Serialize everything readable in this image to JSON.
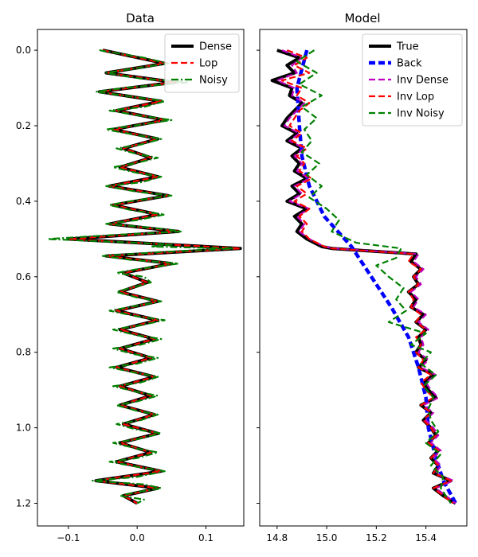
{
  "chart_data": [
    {
      "type": "line",
      "title": "Data",
      "xlabel": "",
      "ylabel": "",
      "xlim": [
        -0.145,
        0.155
      ],
      "ylim": [
        1.26,
        -0.055
      ],
      "y_inverted": true,
      "grid": false,
      "xticks": [
        -0.1,
        0.0,
        0.1
      ],
      "xtick_labels": [
        "−0.1",
        "0.0",
        "0.1"
      ],
      "yticks": [
        0.0,
        0.2,
        0.4,
        0.6,
        0.8,
        1.0,
        1.2
      ],
      "ytick_labels": [
        "0.0",
        "0.2",
        "0.4",
        "0.6",
        "0.8",
        "1.0",
        "1.2"
      ],
      "legend_position": "top-right",
      "series": [
        {
          "name": "Dense",
          "color": "#000000",
          "style": "solid",
          "width": 4,
          "depth": [
            0.0,
            0.035,
            0.06,
            0.085,
            0.11,
            0.135,
            0.16,
            0.185,
            0.21,
            0.235,
            0.26,
            0.285,
            0.31,
            0.335,
            0.36,
            0.385,
            0.41,
            0.435,
            0.46,
            0.48,
            0.5,
            0.515,
            0.525,
            0.545,
            0.565,
            0.59,
            0.615,
            0.64,
            0.665,
            0.69,
            0.715,
            0.74,
            0.765,
            0.79,
            0.815,
            0.84,
            0.865,
            0.89,
            0.915,
            0.94,
            0.965,
            0.99,
            1.015,
            1.04,
            1.065,
            1.09,
            1.115,
            1.14,
            1.16,
            1.18,
            1.2
          ],
          "value": [
            -0.05,
            0.04,
            -0.045,
            0.055,
            -0.055,
            0.035,
            -0.03,
            0.04,
            -0.035,
            0.03,
            -0.02,
            0.02,
            -0.025,
            0.03,
            -0.04,
            0.045,
            -0.035,
            0.03,
            -0.04,
            0.06,
            -0.1,
            0.05,
            0.15,
            -0.045,
            0.05,
            -0.02,
            0.015,
            -0.025,
            0.03,
            -0.03,
            0.03,
            -0.025,
            0.025,
            -0.025,
            0.02,
            -0.03,
            0.025,
            -0.025,
            0.02,
            -0.025,
            0.025,
            -0.02,
            0.03,
            -0.025,
            0.02,
            -0.03,
            0.035,
            -0.06,
            0.03,
            -0.02,
            0.0
          ]
        },
        {
          "name": "Lop",
          "color": "#ff0000",
          "style": "dashed",
          "width": 2.2,
          "depth": [
            0.0,
            0.035,
            0.06,
            0.085,
            0.11,
            0.135,
            0.16,
            0.185,
            0.21,
            0.235,
            0.26,
            0.285,
            0.31,
            0.335,
            0.36,
            0.385,
            0.41,
            0.435,
            0.46,
            0.48,
            0.5,
            0.515,
            0.525,
            0.545,
            0.565,
            0.59,
            0.615,
            0.64,
            0.665,
            0.69,
            0.715,
            0.74,
            0.765,
            0.79,
            0.815,
            0.84,
            0.865,
            0.89,
            0.915,
            0.94,
            0.965,
            0.99,
            1.015,
            1.04,
            1.065,
            1.09,
            1.115,
            1.14,
            1.16,
            1.18,
            1.2
          ],
          "value": [
            -0.05,
            0.04,
            -0.045,
            0.055,
            -0.055,
            0.035,
            -0.03,
            0.04,
            -0.035,
            0.03,
            -0.02,
            0.02,
            -0.025,
            0.03,
            -0.04,
            0.045,
            -0.035,
            0.03,
            -0.04,
            0.06,
            -0.1,
            0.05,
            0.15,
            -0.045,
            0.05,
            -0.02,
            0.015,
            -0.025,
            0.03,
            -0.03,
            0.03,
            -0.025,
            0.025,
            -0.025,
            0.02,
            -0.03,
            0.025,
            -0.025,
            0.02,
            -0.025,
            0.025,
            -0.02,
            0.03,
            -0.025,
            0.02,
            -0.03,
            0.035,
            -0.06,
            0.03,
            -0.02,
            0.0
          ]
        },
        {
          "name": "Noisy",
          "color": "#008000",
          "style": "dashdot",
          "width": 2.2,
          "depth": [
            0.0,
            0.02,
            0.035,
            0.05,
            0.06,
            0.075,
            0.085,
            0.1,
            0.11,
            0.125,
            0.135,
            0.15,
            0.16,
            0.175,
            0.185,
            0.2,
            0.21,
            0.225,
            0.235,
            0.25,
            0.26,
            0.275,
            0.285,
            0.3,
            0.31,
            0.325,
            0.335,
            0.35,
            0.36,
            0.375,
            0.385,
            0.4,
            0.41,
            0.425,
            0.435,
            0.45,
            0.46,
            0.47,
            0.48,
            0.49,
            0.5,
            0.51,
            0.515,
            0.52,
            0.525,
            0.535,
            0.545,
            0.555,
            0.565,
            0.58,
            0.59,
            0.6,
            0.615,
            0.63,
            0.64,
            0.655,
            0.665,
            0.68,
            0.69,
            0.705,
            0.715,
            0.73,
            0.74,
            0.755,
            0.765,
            0.78,
            0.79,
            0.805,
            0.815,
            0.83,
            0.84,
            0.855,
            0.865,
            0.88,
            0.89,
            0.905,
            0.915,
            0.93,
            0.94,
            0.955,
            0.965,
            0.98,
            0.99,
            1.005,
            1.015,
            1.03,
            1.04,
            1.055,
            1.065,
            1.08,
            1.09,
            1.105,
            1.115,
            1.13,
            1.14,
            1.15,
            1.16,
            1.17,
            1.18,
            1.19,
            1.2
          ],
          "value": [
            -0.055,
            0.01,
            0.045,
            -0.01,
            -0.045,
            0.005,
            0.075,
            -0.02,
            -0.06,
            0.0,
            0.04,
            0.01,
            -0.04,
            0.01,
            0.05,
            -0.005,
            -0.045,
            0.0,
            0.035,
            0.005,
            -0.03,
            0.0,
            0.03,
            -0.005,
            -0.035,
            0.0,
            0.035,
            0.005,
            -0.045,
            0.0,
            0.05,
            -0.01,
            -0.04,
            -0.005,
            0.04,
            0.0,
            -0.045,
            0.02,
            0.065,
            -0.04,
            -0.13,
            0.0,
            0.05,
            0.02,
            0.14,
            0.03,
            -0.05,
            -0.01,
            0.06,
            0.0,
            -0.03,
            0.01,
            0.02,
            -0.01,
            -0.03,
            0.0,
            0.035,
            -0.01,
            -0.04,
            0.0,
            0.04,
            0.0,
            -0.035,
            0.0,
            0.035,
            0.005,
            -0.035,
            -0.005,
            0.03,
            0.0,
            -0.04,
            0.0,
            0.03,
            0.005,
            -0.035,
            0.0,
            0.03,
            0.0,
            -0.03,
            0.0,
            0.03,
            0.005,
            -0.03,
            0.0,
            0.035,
            0.0,
            -0.035,
            0.0,
            0.03,
            0.0,
            -0.04,
            0.005,
            0.04,
            0.0,
            -0.065,
            0.01,
            0.035,
            0.0,
            -0.025,
            0.01,
            0.0
          ]
        }
      ]
    },
    {
      "type": "line",
      "title": "Model",
      "xlabel": "",
      "ylabel": "",
      "xlim": [
        14.73,
        15.565
      ],
      "ylim": [
        1.26,
        -0.055
      ],
      "y_inverted": true,
      "shared_y": true,
      "grid": false,
      "xticks": [
        14.8,
        15.0,
        15.2,
        15.4
      ],
      "xtick_labels": [
        "14.8",
        "15.0",
        "15.2",
        "15.4"
      ],
      "legend_position": "top-right",
      "series": [
        {
          "name": "True",
          "color": "#000000",
          "style": "solid",
          "width": 4,
          "depth": [
            0.0,
            0.02,
            0.04,
            0.06,
            0.08,
            0.1,
            0.12,
            0.14,
            0.16,
            0.18,
            0.2,
            0.22,
            0.24,
            0.26,
            0.28,
            0.3,
            0.32,
            0.34,
            0.36,
            0.38,
            0.4,
            0.42,
            0.44,
            0.46,
            0.48,
            0.5,
            0.52,
            0.525,
            0.54,
            0.56,
            0.58,
            0.6,
            0.62,
            0.64,
            0.66,
            0.68,
            0.7,
            0.72,
            0.74,
            0.76,
            0.78,
            0.8,
            0.82,
            0.84,
            0.86,
            0.88,
            0.9,
            0.92,
            0.94,
            0.96,
            0.98,
            1.0,
            1.02,
            1.04,
            1.06,
            1.08,
            1.1,
            1.12,
            1.14,
            1.16,
            1.18,
            1.2
          ],
          "value": [
            14.8,
            14.89,
            14.84,
            14.87,
            14.78,
            14.86,
            14.85,
            14.9,
            14.87,
            14.84,
            14.82,
            14.88,
            14.84,
            14.9,
            14.86,
            14.89,
            14.87,
            14.92,
            14.86,
            14.89,
            14.84,
            14.92,
            14.87,
            14.9,
            14.88,
            14.92,
            14.98,
            15.02,
            15.36,
            15.34,
            15.38,
            15.35,
            15.37,
            15.33,
            15.36,
            15.34,
            15.39,
            15.36,
            15.4,
            15.37,
            15.38,
            15.36,
            15.4,
            15.37,
            15.43,
            15.39,
            15.41,
            15.44,
            15.38,
            15.42,
            15.39,
            15.42,
            15.44,
            15.41,
            15.45,
            15.42,
            15.45,
            15.43,
            15.5,
            15.43,
            15.47,
            15.52
          ]
        },
        {
          "name": "Back",
          "color": "#0000ff",
          "style": "dashed",
          "width": 4.5,
          "depth": [
            0.0,
            0.1,
            0.2,
            0.28,
            0.36,
            0.44,
            0.52,
            0.6,
            0.68,
            0.76,
            0.84,
            0.92,
            1.0,
            1.08,
            1.14,
            1.2
          ],
          "value": [
            14.92,
            14.88,
            14.89,
            14.9,
            14.93,
            14.99,
            15.1,
            15.18,
            15.26,
            15.33,
            15.37,
            15.4,
            15.41,
            15.44,
            15.47,
            15.52
          ]
        },
        {
          "name": "Inv Dense",
          "color": "#bf00bf",
          "style": "dashed",
          "width": 2.2,
          "depth": [
            0.0,
            0.02,
            0.04,
            0.06,
            0.08,
            0.1,
            0.12,
            0.14,
            0.16,
            0.18,
            0.2,
            0.22,
            0.24,
            0.26,
            0.28,
            0.3,
            0.32,
            0.34,
            0.36,
            0.38,
            0.4,
            0.42,
            0.44,
            0.46,
            0.48,
            0.5,
            0.52,
            0.525,
            0.54,
            0.56,
            0.58,
            0.6,
            0.62,
            0.64,
            0.66,
            0.68,
            0.7,
            0.72,
            0.74,
            0.76,
            0.78,
            0.8,
            0.82,
            0.84,
            0.86,
            0.88,
            0.9,
            0.92,
            0.94,
            0.96,
            0.98,
            1.0,
            1.02,
            1.04,
            1.06,
            1.08,
            1.1,
            1.12,
            1.14,
            1.16,
            1.18,
            1.2
          ],
          "value": [
            14.82,
            14.9,
            14.86,
            14.88,
            14.8,
            14.87,
            14.86,
            14.91,
            14.88,
            14.85,
            14.83,
            14.89,
            14.85,
            14.91,
            14.87,
            14.9,
            14.88,
            14.93,
            14.87,
            14.9,
            14.85,
            14.93,
            14.88,
            14.91,
            14.89,
            14.93,
            14.99,
            15.03,
            15.37,
            15.35,
            15.39,
            15.36,
            15.38,
            15.34,
            15.37,
            15.35,
            15.4,
            15.37,
            15.41,
            15.38,
            15.39,
            15.37,
            15.41,
            15.38,
            15.44,
            15.4,
            15.42,
            15.45,
            15.39,
            15.43,
            15.4,
            15.43,
            15.45,
            15.42,
            15.46,
            15.43,
            15.46,
            15.44,
            15.51,
            15.44,
            15.48,
            15.52
          ]
        },
        {
          "name": "Inv Lop",
          "color": "#ff0000",
          "style": "dashed",
          "width": 2.2,
          "depth": [
            0.0,
            0.02,
            0.04,
            0.06,
            0.08,
            0.1,
            0.12,
            0.14,
            0.16,
            0.18,
            0.2,
            0.22,
            0.24,
            0.26,
            0.28,
            0.3,
            0.32,
            0.34,
            0.36,
            0.38,
            0.4,
            0.42,
            0.44,
            0.46,
            0.48,
            0.5,
            0.52,
            0.525,
            0.54,
            0.56,
            0.58,
            0.6,
            0.62,
            0.64,
            0.66,
            0.68,
            0.7,
            0.72,
            0.74,
            0.76,
            0.78,
            0.8,
            0.82,
            0.84,
            0.86,
            0.88,
            0.9,
            0.92,
            0.94,
            0.96,
            0.98,
            1.0,
            1.02,
            1.04,
            1.06,
            1.08,
            1.1,
            1.12,
            1.14,
            1.16,
            1.18,
            1.2
          ],
          "value": [
            14.84,
            14.92,
            14.87,
            14.93,
            14.82,
            14.9,
            14.88,
            14.93,
            14.89,
            14.87,
            14.85,
            14.9,
            14.86,
            14.92,
            14.88,
            14.91,
            14.89,
            14.94,
            14.88,
            14.92,
            14.87,
            14.93,
            14.89,
            14.92,
            14.9,
            14.93,
            14.99,
            15.02,
            15.35,
            15.33,
            15.38,
            15.35,
            15.37,
            15.33,
            15.35,
            15.34,
            15.38,
            15.36,
            15.4,
            15.36,
            15.38,
            15.36,
            15.39,
            15.37,
            15.42,
            15.38,
            15.4,
            15.43,
            15.38,
            15.42,
            15.39,
            15.42,
            15.44,
            15.41,
            15.45,
            15.42,
            15.45,
            15.43,
            15.5,
            15.43,
            15.47,
            15.51
          ]
        },
        {
          "name": "Inv Noisy",
          "color": "#008000",
          "style": "dashed",
          "width": 2.2,
          "depth": [
            0.0,
            0.03,
            0.06,
            0.09,
            0.12,
            0.15,
            0.18,
            0.21,
            0.24,
            0.27,
            0.3,
            0.33,
            0.36,
            0.39,
            0.42,
            0.45,
            0.48,
            0.51,
            0.525,
            0.55,
            0.57,
            0.6,
            0.63,
            0.66,
            0.69,
            0.72,
            0.75,
            0.78,
            0.8,
            0.83,
            0.86,
            0.89,
            0.92,
            0.95,
            0.98,
            1.01,
            1.04,
            1.07,
            1.1,
            1.13,
            1.16,
            1.2
          ],
          "value": [
            14.95,
            14.88,
            14.96,
            14.89,
            14.98,
            14.9,
            14.96,
            14.91,
            14.94,
            14.9,
            14.97,
            14.92,
            14.98,
            14.93,
            15.0,
            15.05,
            15.02,
            15.12,
            15.3,
            15.28,
            15.2,
            15.25,
            15.31,
            15.28,
            15.32,
            15.25,
            15.4,
            15.34,
            15.42,
            15.38,
            15.44,
            15.39,
            15.43,
            15.41,
            15.42,
            15.45,
            15.4,
            15.46,
            15.42,
            15.47,
            15.46,
            15.5
          ]
        }
      ]
    }
  ]
}
